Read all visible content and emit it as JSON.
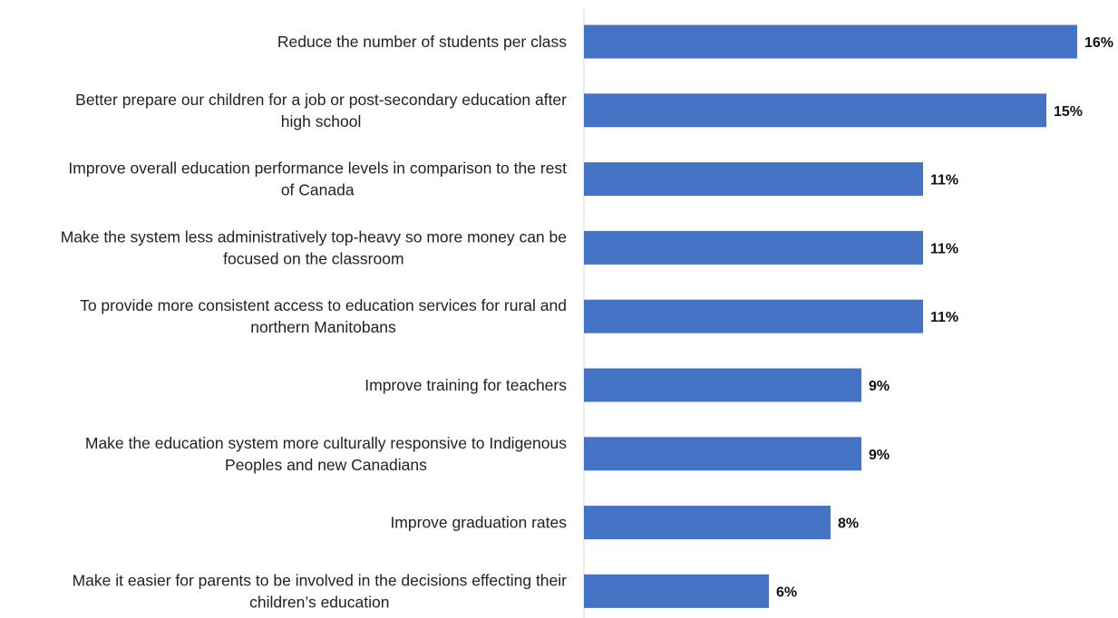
{
  "chart_data": {
    "type": "bar",
    "orientation": "horizontal",
    "categories": [
      [
        "Reduce the number of students per class"
      ],
      [
        "Better prepare our children for a job or post-secondary education after",
        "high school"
      ],
      [
        "Improve overall education performance levels in comparison to the rest",
        "of Canada"
      ],
      [
        "Make the system less administratively top-heavy so more money can be",
        "focused on the classroom"
      ],
      [
        "To provide more consistent access to education services for rural and",
        "northern Manitobans"
      ],
      [
        "Improve training for teachers"
      ],
      [
        "Make the education system more culturally responsive to Indigenous",
        "Peoples and new Canadians"
      ],
      [
        "Improve graduation rates"
      ],
      [
        "Make it easier for parents to be involved in the decisions effecting their",
        "children’s education"
      ]
    ],
    "values": [
      16,
      15,
      11,
      11,
      11,
      9,
      9,
      8,
      6
    ],
    "value_labels": [
      "16%",
      "15%",
      "11%",
      "11%",
      "11%",
      "9%",
      "9%",
      "8%",
      "6%"
    ],
    "bar_color": "#4472c4",
    "xlim": [
      0,
      17
    ],
    "grid": false,
    "legend": "none"
  }
}
